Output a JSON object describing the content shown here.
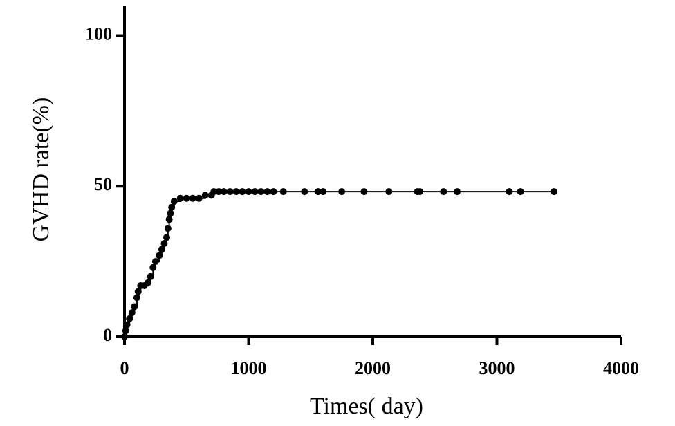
{
  "chart_data": {
    "type": "line",
    "x_label": "Times( day)",
    "y_label": "GVHD rate(%)",
    "xlim": [
      0,
      4000
    ],
    "xticks": [
      0,
      1000,
      2000,
      3000,
      4000
    ],
    "ylim": [
      0,
      110
    ],
    "yticks": [
      0,
      50,
      100
    ],
    "color": "#000000",
    "step": true,
    "x": [
      0,
      10,
      20,
      40,
      60,
      80,
      100,
      110,
      130,
      160,
      190,
      210,
      230,
      250,
      280,
      300,
      320,
      340,
      350,
      360,
      370,
      380,
      400,
      450,
      500,
      550,
      600,
      650,
      700,
      720,
      760,
      800,
      850,
      900,
      950,
      1000,
      1050,
      1100,
      1150,
      1200,
      1280,
      1450,
      1560,
      1600,
      1750,
      1930,
      2130,
      2360,
      2380,
      2570,
      2680,
      3100,
      3190,
      3460
    ],
    "values": [
      0,
      2,
      4,
      6,
      8,
      10,
      13,
      15,
      17,
      17,
      18,
      20,
      23,
      25,
      27,
      29,
      31,
      33,
      36,
      39,
      41,
      43,
      45,
      46,
      46,
      46,
      46,
      47,
      47,
      48.2,
      48.2,
      48.2,
      48.2,
      48.2,
      48.2,
      48.2,
      48.2,
      48.2,
      48.2,
      48.2,
      48.2,
      48.2,
      48.2,
      48.2,
      48.2,
      48.2,
      48.2,
      48.2,
      48.2,
      48.2,
      48.2,
      48.2,
      48.2,
      48.2
    ]
  }
}
